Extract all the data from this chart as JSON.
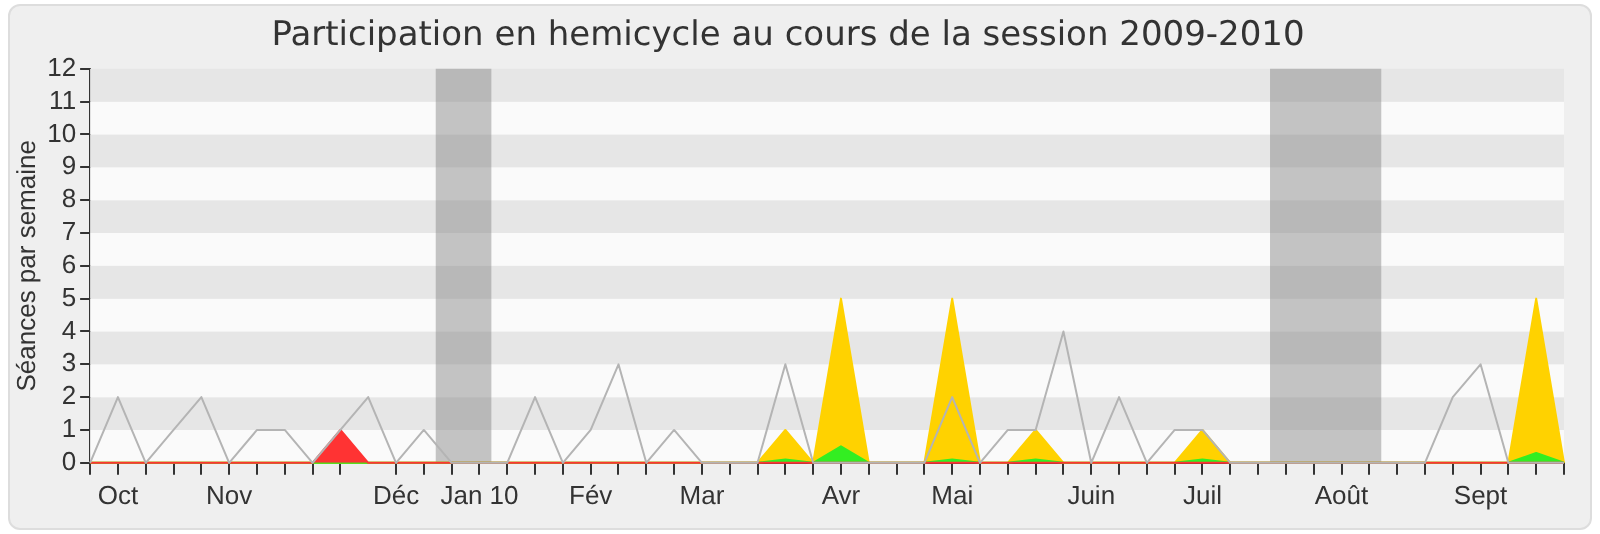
{
  "chart_data": {
    "type": "area",
    "title": "Participation en hemicycle au cours de la session 2009-2010",
    "ylabel": "Séances par semaine",
    "x": [
      "2009-09-28",
      "2009-10-05",
      "2009-10-12",
      "2009-10-19",
      "2009-10-26",
      "2009-11-02",
      "2009-11-09",
      "2009-11-16",
      "2009-11-23",
      "2009-11-30",
      "2009-12-07",
      "2009-12-14",
      "2009-12-21",
      "2009-12-28",
      "2010-01-04",
      "2010-01-11",
      "2010-01-18",
      "2010-01-25",
      "2010-02-01",
      "2010-02-08",
      "2010-02-15",
      "2010-02-22",
      "2010-03-01",
      "2010-03-08",
      "2010-03-15",
      "2010-03-22",
      "2010-03-29",
      "2010-04-05",
      "2010-04-12",
      "2010-04-19",
      "2010-04-26",
      "2010-05-03",
      "2010-05-10",
      "2010-05-17",
      "2010-05-24",
      "2010-05-31",
      "2010-06-07",
      "2010-06-14",
      "2010-06-21",
      "2010-06-28",
      "2010-07-05",
      "2010-07-12",
      "2010-07-19",
      "2010-07-26",
      "2010-08-02",
      "2010-08-09",
      "2010-08-16",
      "2010-08-23",
      "2010-08-30",
      "2010-09-06",
      "2010-09-13",
      "2010-09-20",
      "2010-09-27",
      "2010-10-04"
    ],
    "series": [
      {
        "type": "line",
        "color": "#b4b4b4",
        "values": [
          0,
          2,
          0,
          1,
          2,
          0,
          1,
          1,
          0,
          1,
          2,
          0,
          1,
          0,
          0,
          0,
          2,
          0,
          1,
          3,
          0,
          1,
          0,
          0,
          0,
          3,
          0,
          0,
          0,
          0,
          0,
          2,
          0,
          1,
          1,
          4,
          0,
          2,
          0,
          1,
          1,
          0,
          0,
          0,
          0,
          0,
          0,
          0,
          0,
          2,
          3,
          0,
          0,
          0
        ]
      },
      {
        "color": "#ffd200",
        "values": [
          0,
          0,
          0,
          0,
          0,
          0,
          0,
          0,
          0,
          0,
          0,
          0,
          0,
          0,
          0,
          0,
          0,
          0,
          0,
          0,
          0,
          0,
          0,
          0,
          0,
          1,
          0,
          5,
          0,
          0,
          0,
          5,
          0,
          0,
          1,
          0,
          0,
          0,
          0,
          0,
          1,
          0,
          0,
          0,
          0,
          0,
          0,
          0,
          0,
          0,
          0,
          0,
          5,
          0
        ]
      },
      {
        "color": "#33ee22",
        "values": [
          0,
          0,
          0,
          0,
          0,
          0,
          0,
          0,
          0,
          0,
          0,
          0,
          0,
          0,
          0,
          0,
          0,
          0,
          0,
          0,
          0,
          0,
          0,
          0,
          0,
          0.1,
          0,
          0.5,
          0,
          0,
          0,
          0.1,
          0,
          0,
          0.1,
          0,
          0,
          0,
          0,
          0,
          0.1,
          0,
          0,
          0,
          0,
          0,
          0,
          0,
          0,
          0,
          0,
          0,
          0.3,
          0
        ]
      },
      {
        "color": "#ff3333",
        "values": [
          0,
          0,
          0,
          0,
          0,
          0,
          0,
          0,
          0,
          1,
          0,
          0,
          0,
          0,
          0,
          0,
          0,
          0,
          0,
          0,
          0,
          0,
          0,
          0,
          0,
          0,
          0,
          0,
          0,
          0,
          0,
          0,
          0,
          0,
          0,
          0,
          0,
          0,
          0,
          0,
          0,
          0,
          0,
          0,
          0,
          0,
          0,
          0,
          0,
          0,
          0,
          0,
          0,
          0
        ]
      }
    ],
    "xlim": [
      "2009-09-28",
      "2010-10-04"
    ],
    "xticks": [
      {
        "value": "2009-09-28",
        "label": null
      },
      {
        "value": "2009-10-05",
        "label": "Oct"
      },
      {
        "value": "2009-10-12",
        "label": null
      },
      {
        "value": "2009-10-19",
        "label": null
      },
      {
        "value": "2009-10-26",
        "label": null
      },
      {
        "value": "2009-11-02",
        "label": "Nov"
      },
      {
        "value": "2009-11-09",
        "label": null
      },
      {
        "value": "2009-11-16",
        "label": null
      },
      {
        "value": "2009-11-23",
        "label": null
      },
      {
        "value": "2009-11-30",
        "label": null
      },
      {
        "value": "2009-12-14",
        "label": "Déc"
      },
      {
        "value": "2009-12-21",
        "label": null
      },
      {
        "value": "2009-12-28",
        "label": null
      },
      {
        "value": "2010-01-04",
        "label": "Jan 10"
      },
      {
        "value": "2010-01-11",
        "label": null
      },
      {
        "value": "2010-01-18",
        "label": null
      },
      {
        "value": "2010-01-25",
        "label": null
      },
      {
        "value": "2010-02-01",
        "label": "Fév"
      },
      {
        "value": "2010-02-08",
        "label": null
      },
      {
        "value": "2010-02-15",
        "label": null
      },
      {
        "value": "2010-02-22",
        "label": null
      },
      {
        "value": "2010-03-01",
        "label": "Mar"
      },
      {
        "value": "2010-03-08",
        "label": null
      },
      {
        "value": "2010-03-15",
        "label": null
      },
      {
        "value": "2010-03-22",
        "label": null
      },
      {
        "value": "2010-03-29",
        "label": null
      },
      {
        "value": "2010-04-05",
        "label": "Avr"
      },
      {
        "value": "2010-04-12",
        "label": null
      },
      {
        "value": "2010-04-19",
        "label": null
      },
      {
        "value": "2010-04-26",
        "label": null
      },
      {
        "value": "2010-05-03",
        "label": "Mai"
      },
      {
        "value": "2010-05-10",
        "label": null
      },
      {
        "value": "2010-05-17",
        "label": null
      },
      {
        "value": "2010-05-24",
        "label": null
      },
      {
        "value": "2010-05-31",
        "label": null
      },
      {
        "value": "2010-06-07",
        "label": "Juin"
      },
      {
        "value": "2010-06-14",
        "label": null
      },
      {
        "value": "2010-06-21",
        "label": null
      },
      {
        "value": "2010-06-28",
        "label": null
      },
      {
        "value": "2010-07-05",
        "label": "Juil"
      },
      {
        "value": "2010-07-12",
        "label": null
      },
      {
        "value": "2010-07-19",
        "label": null
      },
      {
        "value": "2010-07-26",
        "label": null
      },
      {
        "value": "2010-08-02",
        "label": null
      },
      {
        "value": "2010-08-09",
        "label": "Août"
      },
      {
        "value": "2010-08-16",
        "label": null
      },
      {
        "value": "2010-08-23",
        "label": null
      },
      {
        "value": "2010-08-30",
        "label": null
      },
      {
        "value": "2010-09-06",
        "label": null
      },
      {
        "value": "2010-09-13",
        "label": "Sept"
      },
      {
        "value": "2010-09-20",
        "label": null
      },
      {
        "value": "2010-09-27",
        "label": null
      },
      {
        "value": "2010-10-04",
        "label": null
      }
    ],
    "ylim": [
      0,
      12
    ],
    "yticks": [
      0,
      1,
      2,
      3,
      4,
      5,
      6,
      7,
      8,
      9,
      10,
      11,
      12
    ],
    "bands": [
      {
        "axis": "x",
        "from": "2009-12-24",
        "to": "2010-01-07",
        "color": "#808080"
      },
      {
        "axis": "x",
        "from": "2010-07-22",
        "to": "2010-08-19",
        "color": "#808080"
      }
    ],
    "legend": false,
    "marker": "none"
  }
}
